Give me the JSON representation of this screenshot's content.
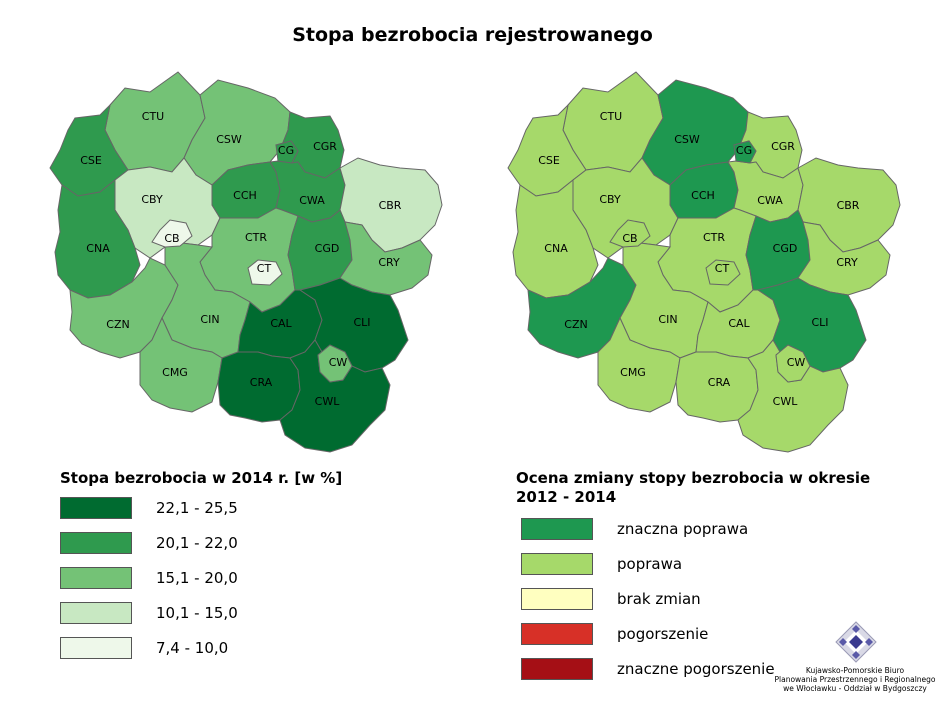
{
  "title": "Stopa bezrobocia rejestrowanego",
  "map_left": {
    "legend_title": "Stopa bezrobocia w 2014 r. [w %]",
    "classes": [
      {
        "label": "22,1 - 25,5",
        "color": "#006b30"
      },
      {
        "label": "20,1 - 22,0",
        "color": "#2f9a4e"
      },
      {
        "label": "15,1 - 20,0",
        "color": "#74c276"
      },
      {
        "label": "10,1 - 15,0",
        "color": "#c8e8c2"
      },
      {
        "label": "7,4 - 10,0",
        "color": "#eef8ea"
      }
    ],
    "regions": [
      {
        "code": "CTU",
        "class": 2
      },
      {
        "code": "CSE",
        "class": 1
      },
      {
        "code": "CSW",
        "class": 2
      },
      {
        "code": "CG",
        "class": 1
      },
      {
        "code": "CGR",
        "class": 1
      },
      {
        "code": "CBY",
        "class": 3
      },
      {
        "code": "CB",
        "class": 4
      },
      {
        "code": "CCH",
        "class": 1
      },
      {
        "code": "CWA",
        "class": 1
      },
      {
        "code": "CBR",
        "class": 3
      },
      {
        "code": "CNA",
        "class": 1
      },
      {
        "code": "CTR",
        "class": 2
      },
      {
        "code": "CT",
        "class": 4
      },
      {
        "code": "CGD",
        "class": 1
      },
      {
        "code": "CRY",
        "class": 2
      },
      {
        "code": "CZN",
        "class": 2
      },
      {
        "code": "CIN",
        "class": 2
      },
      {
        "code": "CAL",
        "class": 0
      },
      {
        "code": "CLI",
        "class": 0
      },
      {
        "code": "CW",
        "class": 2
      },
      {
        "code": "CMG",
        "class": 2
      },
      {
        "code": "CRA",
        "class": 0
      },
      {
        "code": "CWL",
        "class": 0
      }
    ]
  },
  "map_right": {
    "legend_title": "Ocena zmiany stopy bezrobocia w okresie 2012 - 2014",
    "classes": [
      {
        "label": "znaczna poprawa",
        "color": "#1e9850"
      },
      {
        "label": "poprawa",
        "color": "#a6d96a"
      },
      {
        "label": "brak zmian",
        "color": "#ffffc0"
      },
      {
        "label": "pogorszenie",
        "color": "#d73027"
      },
      {
        "label": "znaczne pogorszenie",
        "color": "#a50f15"
      }
    ],
    "regions": [
      {
        "code": "CTU",
        "class": 1
      },
      {
        "code": "CSE",
        "class": 1
      },
      {
        "code": "CSW",
        "class": 0
      },
      {
        "code": "CG",
        "class": 0
      },
      {
        "code": "CGR",
        "class": 1
      },
      {
        "code": "CBY",
        "class": 1
      },
      {
        "code": "CB",
        "class": 1
      },
      {
        "code": "CCH",
        "class": 0
      },
      {
        "code": "CWA",
        "class": 1
      },
      {
        "code": "CBR",
        "class": 1
      },
      {
        "code": "CNA",
        "class": 1
      },
      {
        "code": "CTR",
        "class": 1
      },
      {
        "code": "CT",
        "class": 1
      },
      {
        "code": "CGD",
        "class": 0
      },
      {
        "code": "CRY",
        "class": 1
      },
      {
        "code": "CZN",
        "class": 0
      },
      {
        "code": "CIN",
        "class": 1
      },
      {
        "code": "CAL",
        "class": 1
      },
      {
        "code": "CLI",
        "class": 0
      },
      {
        "code": "CW",
        "class": 1
      },
      {
        "code": "CMG",
        "class": 1
      },
      {
        "code": "CRA",
        "class": 1
      },
      {
        "code": "CWL",
        "class": 1
      }
    ]
  },
  "logo": {
    "line1": "Kujawsko-Pomorskie Biuro",
    "line2": "Planowania Przestrzennego i Regionalnego",
    "line3": "we Włocławku - Oddział w Bydgoszczy"
  }
}
